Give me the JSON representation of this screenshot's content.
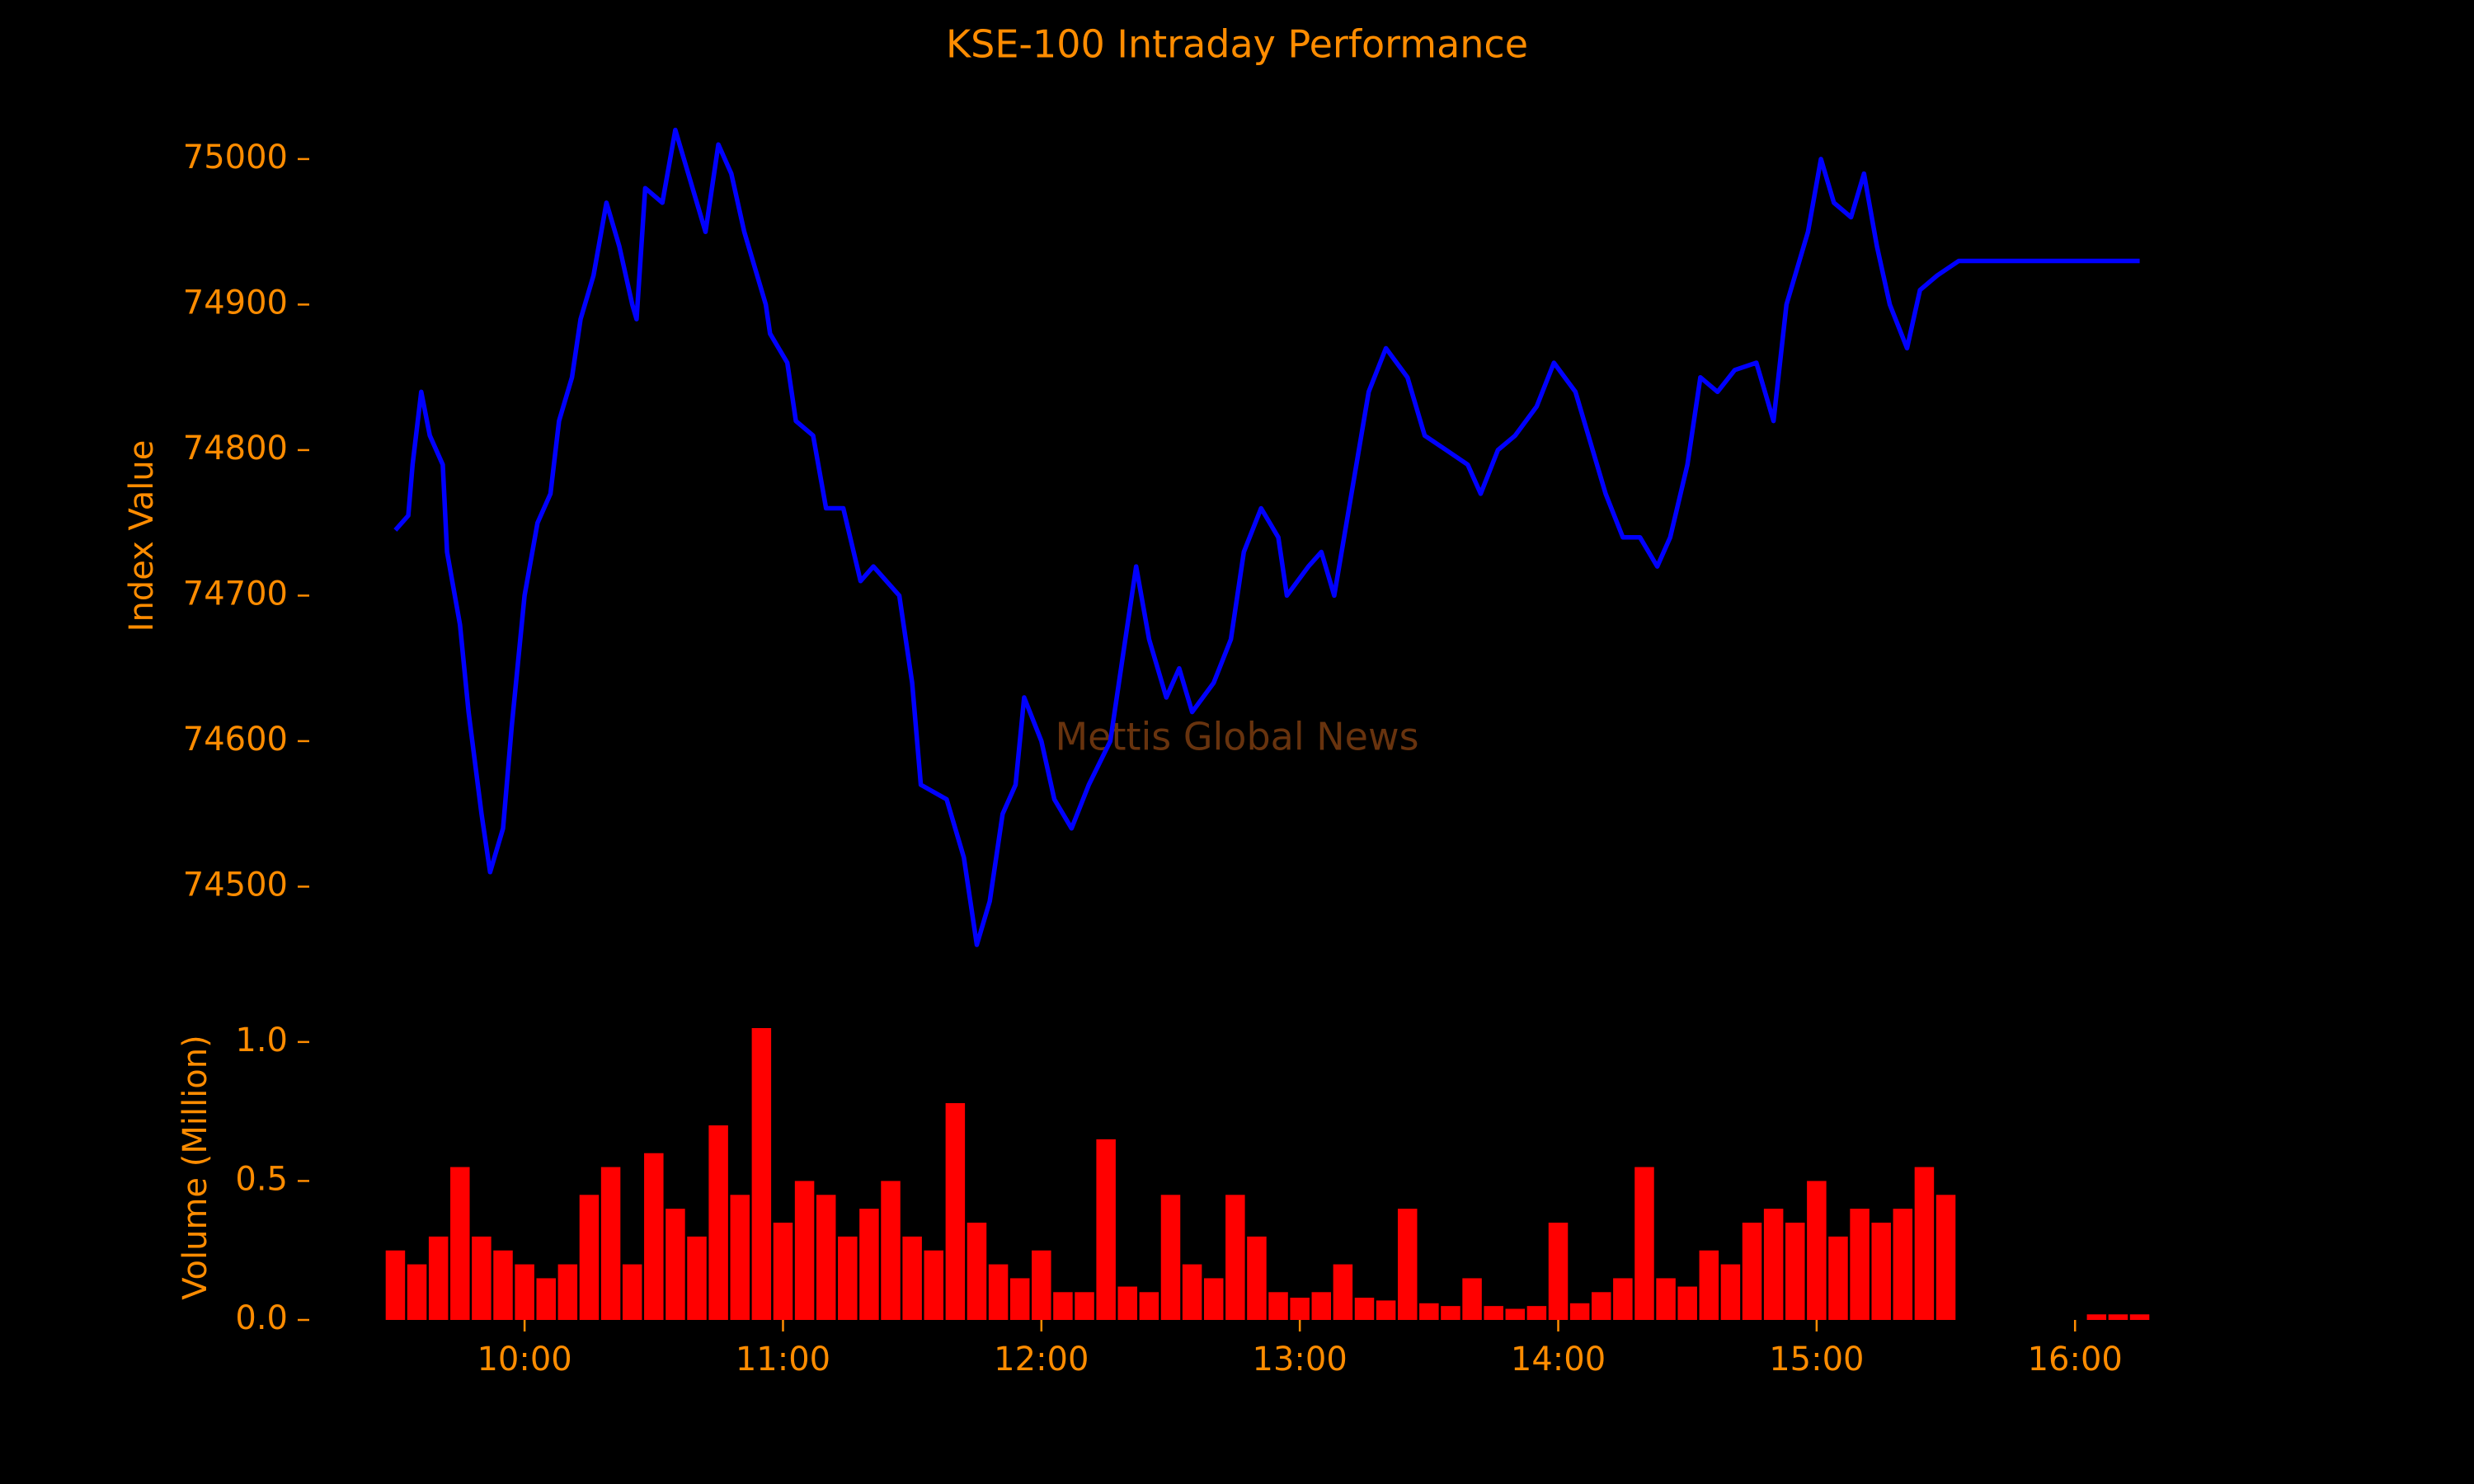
{
  "chart_data": [
    {
      "type": "line",
      "title": "KSE-100 Intraday Performance",
      "ylabel": "Index Value",
      "annotation": "Mettis Global News",
      "color": "#0000ff",
      "x": [
        "09:30",
        "09:33",
        "09:34",
        "09:36",
        "09:38",
        "09:41",
        "09:42",
        "09:45",
        "09:47",
        "09:50",
        "09:52",
        "09:55",
        "09:57",
        "10:00",
        "10:03",
        "10:06",
        "10:08",
        "10:11",
        "10:13",
        "10:16",
        "10:19",
        "10:22",
        "10:25",
        "10:26",
        "10:28",
        "10:32",
        "10:35",
        "10:38",
        "10:42",
        "10:45",
        "10:48",
        "10:51",
        "10:56",
        "10:57",
        "11:01",
        "11:03",
        "11:07",
        "11:10",
        "11:14",
        "11:18",
        "11:21",
        "11:27",
        "11:30",
        "11:32",
        "11:38",
        "11:42",
        "11:45",
        "11:48",
        "11:51",
        "11:54",
        "11:56",
        "12:00",
        "12:03",
        "12:07",
        "12:11",
        "12:16",
        "12:19",
        "12:22",
        "12:25",
        "12:29",
        "12:32",
        "12:35",
        "12:40",
        "12:44",
        "12:47",
        "12:51",
        "12:55",
        "12:57",
        "13:02",
        "13:05",
        "13:08",
        "13:12",
        "13:16",
        "13:20",
        "13:25",
        "13:29",
        "13:34",
        "13:39",
        "13:42",
        "13:46",
        "13:50",
        "13:55",
        "13:59",
        "14:04",
        "14:08",
        "14:11",
        "14:15",
        "14:19",
        "14:23",
        "14:26",
        "14:30",
        "14:33",
        "14:37",
        "14:41",
        "14:46",
        "14:50",
        "14:53",
        "14:58",
        "15:01",
        "15:04",
        "15:08",
        "15:11",
        "15:14",
        "15:17",
        "15:21",
        "15:24",
        "15:28",
        "15:33",
        "16:15"
      ],
      "values": [
        74745,
        74755,
        74790,
        74840,
        74810,
        74790,
        74730,
        74680,
        74620,
        74550,
        74510,
        74540,
        74610,
        74700,
        74750,
        74770,
        74820,
        74850,
        74890,
        74920,
        74970,
        74940,
        74900,
        74890,
        74980,
        74970,
        75020,
        74990,
        74950,
        75010,
        74990,
        74950,
        74900,
        74880,
        74860,
        74820,
        74810,
        74760,
        74760,
        74710,
        74720,
        74700,
        74640,
        74570,
        74560,
        74520,
        74460,
        74490,
        74550,
        74570,
        74630,
        74600,
        74560,
        74540,
        74570,
        74600,
        74660,
        74720,
        74670,
        74630,
        74650,
        74620,
        74640,
        74670,
        74730,
        74760,
        74740,
        74700,
        74720,
        74730,
        74700,
        74770,
        74840,
        74870,
        74850,
        74810,
        74800,
        74790,
        74770,
        74800,
        74810,
        74830,
        74860,
        74840,
        74800,
        74770,
        74740,
        74740,
        74720,
        74740,
        74790,
        74850,
        74840,
        74855,
        74860,
        74820,
        74900,
        74950,
        75000,
        74970,
        74960,
        74990,
        74940,
        74900,
        74870,
        74910,
        74920,
        74930,
        74930
      ],
      "xlim": [
        "09:10",
        "16:35"
      ],
      "ylim": [
        74430,
        75060
      ],
      "yticks": [
        74500,
        74600,
        74700,
        74800,
        74900,
        75000
      ]
    },
    {
      "type": "bar",
      "ylabel": "Volume (Million)",
      "color": "#ff0000",
      "x": [
        "09:30",
        "09:35",
        "09:40",
        "09:45",
        "09:50",
        "09:55",
        "10:00",
        "10:05",
        "10:10",
        "10:15",
        "10:20",
        "10:25",
        "10:30",
        "10:35",
        "10:40",
        "10:45",
        "10:50",
        "10:55",
        "11:00",
        "11:05",
        "11:10",
        "11:15",
        "11:20",
        "11:25",
        "11:30",
        "11:35",
        "11:40",
        "11:45",
        "11:50",
        "11:55",
        "12:00",
        "12:05",
        "12:10",
        "12:15",
        "12:20",
        "12:25",
        "12:30",
        "12:35",
        "12:40",
        "12:45",
        "12:50",
        "12:55",
        "13:00",
        "13:05",
        "13:10",
        "13:15",
        "13:20",
        "13:25",
        "13:30",
        "13:35",
        "13:40",
        "13:45",
        "13:50",
        "13:55",
        "14:00",
        "14:05",
        "14:10",
        "14:15",
        "14:20",
        "14:25",
        "14:30",
        "14:35",
        "14:40",
        "14:45",
        "14:50",
        "14:55",
        "15:00",
        "15:05",
        "15:10",
        "15:15",
        "15:20",
        "15:25",
        "15:30",
        "16:05",
        "16:10",
        "16:15"
      ],
      "values": [
        0.25,
        0.2,
        0.3,
        0.55,
        0.3,
        0.25,
        0.2,
        0.15,
        0.2,
        0.45,
        0.55,
        0.2,
        0.6,
        0.4,
        0.3,
        0.7,
        0.45,
        1.05,
        0.35,
        0.5,
        0.45,
        0.3,
        0.4,
        0.5,
        0.3,
        0.25,
        0.78,
        0.35,
        0.2,
        0.15,
        0.25,
        0.1,
        0.1,
        0.65,
        0.12,
        0.1,
        0.45,
        0.2,
        0.15,
        0.45,
        0.3,
        0.1,
        0.08,
        0.1,
        0.2,
        0.08,
        0.07,
        0.4,
        0.06,
        0.05,
        0.15,
        0.05,
        0.04,
        0.05,
        0.35,
        0.06,
        0.1,
        0.15,
        0.55,
        0.15,
        0.12,
        0.25,
        0.2,
        0.35,
        0.4,
        0.35,
        0.5,
        0.3,
        0.4,
        0.35,
        0.4,
        0.55,
        0.45,
        0.02,
        0.02,
        0.02
      ],
      "xlim": [
        "09:10",
        "16:35"
      ],
      "ylim": [
        0,
        1.05
      ],
      "yticks": [
        {
          "value": 0,
          "label": "0.0"
        },
        0.5,
        {
          "value": 1,
          "label": "1.0"
        }
      ],
      "xticks": [
        "10:00",
        "11:00",
        "12:00",
        "13:00",
        "14:00",
        "15:00",
        "16:00"
      ]
    }
  ]
}
